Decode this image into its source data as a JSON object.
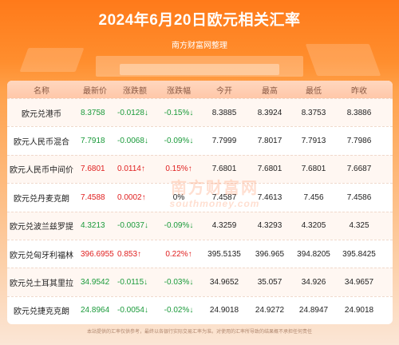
{
  "header": {
    "title": "2024年6月20日欧元相关汇率",
    "subtitle": "南方财富网整理"
  },
  "table": {
    "columns": [
      "名称",
      "最新价",
      "涨跌额",
      "涨跌幅",
      "今开",
      "最高",
      "最低",
      "昨收"
    ],
    "rows": [
      {
        "name": "欧元兑港币",
        "price": "8.3758",
        "change": "-0.0128↓",
        "pct": "-0.15%↓",
        "open": "8.3885",
        "high": "8.3924",
        "low": "8.3753",
        "prev": "8.3886",
        "trend": "down"
      },
      {
        "name": "欧元人民币混合",
        "price": "7.7918",
        "change": "-0.0068↓",
        "pct": "-0.09%↓",
        "open": "7.7999",
        "high": "7.8017",
        "low": "7.7913",
        "prev": "7.7986",
        "trend": "down"
      },
      {
        "name": "欧元人民币中间价",
        "price": "7.6801",
        "change": "0.0114↑",
        "pct": "0.15%↑",
        "open": "7.6801",
        "high": "7.6801",
        "low": "7.6801",
        "prev": "7.6687",
        "trend": "up"
      },
      {
        "name": "欧元兑丹麦克朗",
        "price": "7.4588",
        "change": "0.0002↑",
        "pct": "0%",
        "open": "7.4587",
        "high": "7.4613",
        "low": "7.456",
        "prev": "7.4586",
        "trend": "up",
        "pct_trend": "flat"
      },
      {
        "name": "欧元兑波兰兹罗提",
        "price": "4.3213",
        "change": "-0.0037↓",
        "pct": "-0.09%↓",
        "open": "4.3259",
        "high": "4.3293",
        "low": "4.3205",
        "prev": "4.325",
        "trend": "down"
      },
      {
        "name": "欧元兑匈牙利福林",
        "price": "396.6955",
        "change": "0.853↑",
        "pct": "0.22%↑",
        "open": "395.5135",
        "high": "396.965",
        "low": "394.8205",
        "prev": "395.8425",
        "trend": "up"
      },
      {
        "name": "欧元兑土耳其里拉",
        "price": "34.9542",
        "change": "-0.0115↓",
        "pct": "-0.03%↓",
        "open": "34.9652",
        "high": "35.057",
        "low": "34.926",
        "prev": "34.9657",
        "trend": "down"
      },
      {
        "name": "欧元兑捷克克朗",
        "price": "24.8964",
        "change": "-0.0054↓",
        "pct": "-0.02%↓",
        "open": "24.9018",
        "high": "24.9272",
        "low": "24.8947",
        "prev": "24.9018",
        "trend": "down"
      }
    ]
  },
  "watermark": {
    "line1": "南方财富网",
    "line2": "southmoney.com"
  },
  "footer": {
    "text": "本站提供的汇率仅供参考，最终以各银行实际交易汇率为准。对使用的汇率所导致的结果概不承担任何责任"
  },
  "colors": {
    "up": "#e02020",
    "down": "#1a9a3a",
    "accent": "#ff7a1a"
  }
}
